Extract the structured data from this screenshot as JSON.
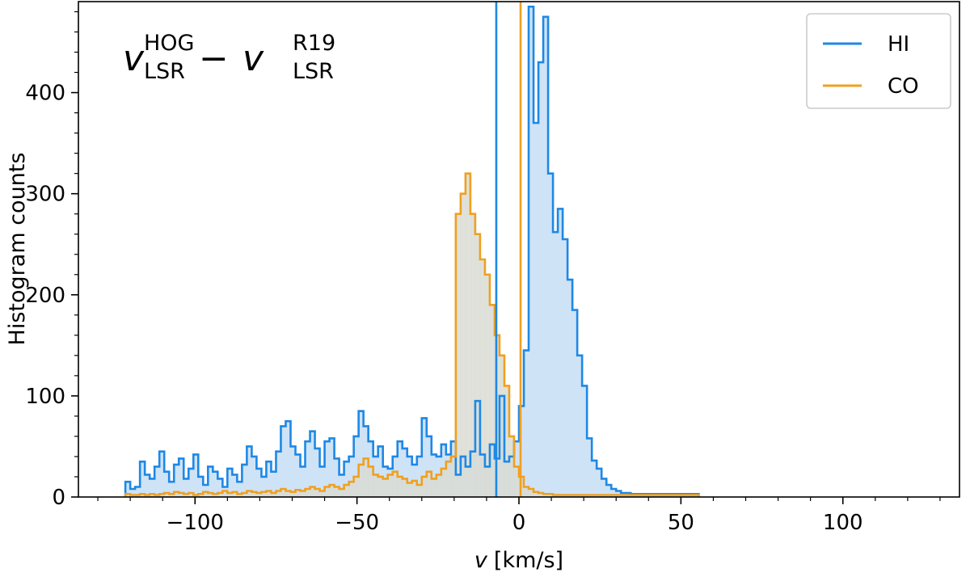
{
  "chart_data": {
    "type": "histogram",
    "xlabel_var": "v",
    "xlabel_unit": "[km/s]",
    "ylabel": "Histogram counts",
    "xlim": [
      -136,
      136
    ],
    "ylim": [
      0,
      490
    ],
    "xticks": [
      "−100",
      "−50",
      "0",
      "50",
      "100"
    ],
    "xtick_values": [
      -100,
      -50,
      0,
      50,
      100
    ],
    "yticks": [
      "0",
      "100",
      "200",
      "300",
      "400"
    ],
    "ytick_values": [
      0,
      100,
      200,
      300,
      400
    ],
    "annotation": {
      "left_var": "v",
      "left_sup": "HOG",
      "left_sub": "LSR",
      "minus": "−",
      "right_var": "v",
      "right_sup": "R19",
      "right_sub": "LSR"
    },
    "legend_position": "top-right",
    "series": [
      {
        "name": "HI",
        "color": "#1e88e5",
        "fill": "#cfe3f7",
        "bin_width": 1.5,
        "bins_start": -121.5,
        "counts": [
          15,
          8,
          10,
          35,
          22,
          18,
          30,
          45,
          25,
          15,
          32,
          38,
          18,
          28,
          42,
          20,
          12,
          30,
          25,
          18,
          10,
          28,
          22,
          15,
          32,
          50,
          40,
          28,
          20,
          35,
          25,
          45,
          70,
          75,
          50,
          42,
          30,
          55,
          65,
          48,
          30,
          55,
          58,
          38,
          22,
          35,
          40,
          60,
          85,
          70,
          55,
          40,
          50,
          30,
          28,
          40,
          55,
          48,
          40,
          32,
          40,
          78,
          60,
          42,
          40,
          52,
          42,
          55,
          22,
          40,
          30,
          45,
          95,
          42,
          30,
          52,
          38,
          100,
          35,
          40,
          55,
          90,
          145,
          485,
          370,
          430,
          475,
          320,
          262,
          285,
          255,
          215,
          185,
          140,
          110,
          58,
          36,
          28,
          18,
          12,
          8,
          6,
          4,
          4,
          3,
          3,
          3,
          3,
          3,
          3,
          3,
          3,
          3,
          3,
          3,
          3,
          3,
          3
        ]
      },
      {
        "name": "CO",
        "color": "#f0a020",
        "fill": "#d9dcd4",
        "bin_width": 1.5,
        "bins_start": -121.5,
        "counts": [
          3,
          2,
          2,
          3,
          2,
          3,
          2,
          3,
          4,
          3,
          5,
          4,
          3,
          4,
          2,
          3,
          5,
          4,
          3,
          4,
          6,
          4,
          5,
          3,
          4,
          6,
          5,
          4,
          5,
          6,
          4,
          6,
          8,
          6,
          5,
          7,
          6,
          8,
          10,
          8,
          6,
          10,
          12,
          10,
          8,
          12,
          15,
          20,
          32,
          38,
          30,
          22,
          20,
          18,
          22,
          25,
          20,
          18,
          14,
          16,
          12,
          20,
          25,
          18,
          22,
          28,
          35,
          40,
          280,
          300,
          320,
          280,
          260,
          235,
          220,
          190,
          160,
          140,
          110,
          60,
          30,
          20,
          10,
          8,
          5,
          4,
          3,
          3,
          2,
          2,
          2,
          2,
          2,
          2,
          2,
          2,
          2,
          2,
          2,
          2,
          2,
          2,
          2,
          2,
          2,
          2,
          2,
          2,
          2,
          2,
          2,
          2,
          2,
          2,
          2,
          2,
          2,
          2
        ]
      }
    ],
    "vlines": [
      {
        "name": "HI",
        "x": -7,
        "color": "#1e88e5"
      },
      {
        "name": "CO",
        "x": 0.5,
        "color": "#f0a020"
      }
    ]
  },
  "legend": {
    "items": [
      {
        "label": "HI",
        "color": "#1e88e5"
      },
      {
        "label": "CO",
        "color": "#f0a020"
      }
    ]
  }
}
